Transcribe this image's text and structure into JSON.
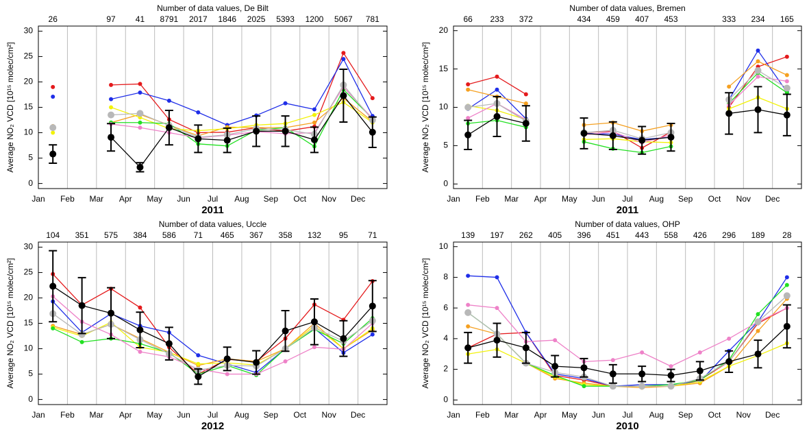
{
  "chart_data": [
    {
      "type": "line",
      "title": "Number of data values, De Bilt",
      "x_label": "2011",
      "y_label": "Average NO₂ VCD [10¹⁵ molec/cm²]",
      "x": [
        0.5,
        1.5,
        2.5,
        3.5,
        4.5,
        5.5,
        6.5,
        7.5,
        8.5,
        9.5,
        10.5,
        11.5
      ],
      "xlim": [
        0,
        12
      ],
      "xticks": [
        {
          "value": 0,
          "label": "Jan"
        },
        {
          "value": 1,
          "label": "Feb"
        },
        {
          "value": 2,
          "label": "Mar"
        },
        {
          "value": 3,
          "label": "Apr"
        },
        {
          "value": 4,
          "label": "May"
        },
        {
          "value": 5,
          "label": "Jun"
        },
        {
          "value": 6,
          "label": "Jul"
        },
        {
          "value": 7,
          "label": "Aug"
        },
        {
          "value": 8,
          "label": "Sep"
        },
        {
          "value": 9,
          "label": "Oct"
        },
        {
          "value": 10,
          "label": "Nov"
        },
        {
          "value": 11,
          "label": "Dec"
        }
      ],
      "ylim": [
        -1,
        31
      ],
      "yticks": [
        0,
        5,
        10,
        15,
        20,
        25,
        30
      ],
      "grid": true,
      "counts": [
        26,
        null,
        97,
        41,
        8791,
        2017,
        1846,
        2025,
        5393,
        1200,
        5067,
        781
      ],
      "series": [
        {
          "color": "#e41a1c",
          "values": [
            19.0,
            null,
            19.4,
            19.6,
            12.6,
            10.0,
            10.1,
            11.0,
            10.3,
            11.2,
            25.7,
            16.8
          ]
        },
        {
          "color": "#1f2ee8",
          "values": [
            17.1,
            null,
            16.6,
            17.9,
            16.3,
            14.0,
            11.5,
            13.4,
            15.8,
            14.6,
            24.5,
            13.3
          ]
        },
        {
          "color": "#f5a020",
          "values": [
            11.3,
            null,
            12.0,
            13.6,
            11.5,
            9.4,
            11.1,
            11.0,
            11.0,
            12.0,
            16.8,
            12.2
          ]
        },
        {
          "color": "#f2f20a",
          "values": [
            10.0,
            null,
            15.0,
            13.0,
            10.8,
            10.4,
            10.8,
            11.5,
            11.8,
            13.5,
            16.0,
            12.0
          ]
        },
        {
          "color": "#22e022",
          "values": [
            11.0,
            null,
            12.0,
            12.0,
            11.8,
            7.8,
            7.4,
            10.5,
            11.0,
            7.3,
            18.5,
            12.8
          ]
        },
        {
          "color": "#ee82c8",
          "values": [
            11.0,
            null,
            11.7,
            11.0,
            10.0,
            9.0,
            9.5,
            10.2,
            9.8,
            10.0,
            19.0,
            12.8
          ]
        },
        {
          "color": "#b8b8b8",
          "values": [
            11.0,
            null,
            13.5,
            13.8,
            11.4,
            9.1,
            9.6,
            10.8,
            10.6,
            9.7,
            19.4,
            12.5
          ]
        },
        {
          "color": "#000000",
          "values": [
            5.8,
            null,
            9.1,
            3.2,
            11.0,
            8.8,
            8.5,
            10.3,
            10.3,
            8.6,
            17.3,
            10.1
          ],
          "errors": [
            1.8,
            null,
            2.7,
            0.9,
            3.4,
            2.7,
            2.4,
            3.0,
            3.0,
            2.5,
            5.2,
            3.0
          ]
        }
      ]
    },
    {
      "type": "line",
      "title": "Number of data values, Bremen",
      "x_label": "2011",
      "y_label": "Average NO₂ VCD [10¹⁵ molec/cm²]",
      "x": [
        0.5,
        1.5,
        2.5,
        3.5,
        4.5,
        5.5,
        6.5,
        7.5,
        8.5,
        9.5,
        10.5,
        11.5
      ],
      "xlim": [
        0,
        12
      ],
      "xticks": [
        {
          "value": 0,
          "label": "Jan"
        },
        {
          "value": 1,
          "label": "Feb"
        },
        {
          "value": 2,
          "label": "Mar"
        },
        {
          "value": 3,
          "label": "Apr"
        },
        {
          "value": 4,
          "label": "May"
        },
        {
          "value": 5,
          "label": "Jun"
        },
        {
          "value": 6,
          "label": "Jul"
        },
        {
          "value": 7,
          "label": "Aug"
        },
        {
          "value": 8,
          "label": "Sep"
        },
        {
          "value": 9,
          "label": "Oct"
        },
        {
          "value": 10,
          "label": "Nov"
        },
        {
          "value": 11,
          "label": "Dec"
        }
      ],
      "ylim": [
        -0.6,
        20.6
      ],
      "yticks": [
        0,
        5,
        10,
        15,
        20
      ],
      "grid": true,
      "counts": [
        66,
        233,
        372,
        null,
        434,
        459,
        407,
        453,
        null,
        333,
        234,
        165
      ],
      "series": [
        {
          "color": "#e41a1c",
          "values": [
            13.0,
            14.0,
            11.7,
            null,
            6.7,
            6.9,
            4.7,
            6.8,
            null,
            10.0,
            15.3,
            16.6
          ]
        },
        {
          "color": "#1f2ee8",
          "values": [
            9.8,
            12.3,
            8.5,
            null,
            6.6,
            6.5,
            5.8,
            6.1,
            null,
            11.0,
            17.4,
            12.0
          ]
        },
        {
          "color": "#f5a020",
          "values": [
            12.3,
            11.4,
            10.5,
            null,
            7.7,
            8.0,
            6.9,
            7.7,
            null,
            12.7,
            16.0,
            14.2
          ]
        },
        {
          "color": "#f2f20a",
          "values": [
            10.2,
            9.6,
            8.4,
            null,
            5.8,
            5.9,
            5.5,
            5.4,
            null,
            9.8,
            11.3,
            9.8
          ]
        },
        {
          "color": "#22e022",
          "values": [
            7.9,
            8.3,
            7.4,
            null,
            5.5,
            4.6,
            4.1,
            4.9,
            null,
            10.5,
            14.5,
            11.9
          ]
        },
        {
          "color": "#ee82c8",
          "values": [
            8.6,
            10.5,
            8.4,
            null,
            6.4,
            6.8,
            5.4,
            6.4,
            null,
            10.3,
            14.0,
            13.4
          ]
        },
        {
          "color": "#b8b8b8",
          "values": [
            10.0,
            10.5,
            8.2,
            null,
            6.7,
            7.0,
            5.9,
            6.7,
            null,
            11.0,
            14.8,
            12.5
          ]
        },
        {
          "color": "#000000",
          "values": [
            6.4,
            8.8,
            7.9,
            null,
            6.6,
            6.3,
            5.7,
            6.1,
            null,
            9.2,
            9.7,
            9.0
          ],
          "errors": [
            1.9,
            2.6,
            2.3,
            null,
            2.0,
            1.8,
            1.8,
            1.8,
            null,
            2.7,
            3.0,
            2.7
          ]
        }
      ]
    },
    {
      "type": "line",
      "title": "Number of data values, Uccle",
      "x_label": "2012",
      "y_label": "Average NO₂ VCD [10¹⁵ molec/cm²]",
      "x": [
        0.5,
        1.5,
        2.5,
        3.5,
        4.5,
        5.5,
        6.5,
        7.5,
        8.5,
        9.5,
        10.5,
        11.5
      ],
      "xlim": [
        0,
        12
      ],
      "xticks": [
        {
          "value": 0,
          "label": "Jan"
        },
        {
          "value": 1,
          "label": "Feb"
        },
        {
          "value": 2,
          "label": "Mar"
        },
        {
          "value": 3,
          "label": "Apr"
        },
        {
          "value": 4,
          "label": "May"
        },
        {
          "value": 5,
          "label": "Jun"
        },
        {
          "value": 6,
          "label": "Jul"
        },
        {
          "value": 7,
          "label": "Aug"
        },
        {
          "value": 8,
          "label": "Sep"
        },
        {
          "value": 9,
          "label": "Oct"
        },
        {
          "value": 10,
          "label": "Nov"
        },
        {
          "value": 11,
          "label": "Dec"
        }
      ],
      "ylim": [
        -1,
        31
      ],
      "yticks": [
        0,
        5,
        10,
        15,
        20,
        25,
        30
      ],
      "grid": true,
      "counts": [
        104,
        351,
        575,
        384,
        586,
        71,
        465,
        367,
        358,
        132,
        95,
        71
      ],
      "series": [
        {
          "color": "#e41a1c",
          "values": [
            24.7,
            18.6,
            21.8,
            18.1,
            10.3,
            5.0,
            7.9,
            7.5,
            12.0,
            18.7,
            15.7,
            23.3
          ]
        },
        {
          "color": "#1f2ee8",
          "values": [
            19.3,
            13.2,
            16.9,
            14.5,
            13.2,
            8.7,
            7.0,
            5.3,
            10.0,
            14.0,
            9.2,
            12.8
          ]
        },
        {
          "color": "#f5a020",
          "values": [
            14.5,
            12.8,
            14.8,
            12.0,
            9.3,
            6.7,
            8.0,
            7.5,
            10.0,
            15.0,
            10.0,
            13.7
          ]
        },
        {
          "color": "#f2f20a",
          "values": [
            14.2,
            12.5,
            15.2,
            10.3,
            9.3,
            7.0,
            7.2,
            6.8,
            10.0,
            14.5,
            10.0,
            14.0
          ]
        },
        {
          "color": "#22e022",
          "values": [
            14.0,
            11.3,
            12.0,
            11.0,
            9.2,
            5.0,
            6.7,
            4.8,
            10.0,
            13.8,
            11.0,
            16.0
          ]
        },
        {
          "color": "#ee82c8",
          "values": [
            20.3,
            15.3,
            12.8,
            9.4,
            8.4,
            6.0,
            5.0,
            5.0,
            7.5,
            10.3,
            9.9,
            15.0
          ]
        },
        {
          "color": "#b8b8b8",
          "values": [
            16.9,
            12.8,
            14.8,
            11.8,
            9.0,
            5.8,
            6.7,
            6.6,
            10.0,
            14.1,
            11.5,
            15.5
          ]
        },
        {
          "color": "#000000",
          "values": [
            22.3,
            18.5,
            17.0,
            13.7,
            11.0,
            4.5,
            8.0,
            7.3,
            13.5,
            15.3,
            12.0,
            18.4
          ],
          "errors": [
            7.0,
            5.5,
            5.0,
            3.5,
            3.2,
            1.5,
            2.3,
            2.3,
            4.0,
            4.5,
            3.5,
            5.0
          ]
        }
      ]
    },
    {
      "type": "line",
      "title": "Number of data values, OHP",
      "x_label": "2010",
      "y_label": "Average NO₂ VCD [10¹⁵ molec/cm²]",
      "x": [
        0.5,
        1.5,
        2.5,
        3.5,
        4.5,
        5.5,
        6.5,
        7.5,
        8.5,
        9.5,
        10.5,
        11.5
      ],
      "xlim": [
        0,
        12
      ],
      "xticks": [
        {
          "value": 0,
          "label": "Jan"
        },
        {
          "value": 1,
          "label": "Feb"
        },
        {
          "value": 2,
          "label": "Mar"
        },
        {
          "value": 3,
          "label": "Apr"
        },
        {
          "value": 4,
          "label": "May"
        },
        {
          "value": 5,
          "label": "Jun"
        },
        {
          "value": 6,
          "label": "Jul"
        },
        {
          "value": 7,
          "label": "Aug"
        },
        {
          "value": 8,
          "label": "Sep"
        },
        {
          "value": 9,
          "label": "Oct"
        },
        {
          "value": 10,
          "label": "Nov"
        },
        {
          "value": 11,
          "label": "Dec"
        }
      ],
      "ylim": [
        -0.3,
        10.3
      ],
      "yticks": [
        0,
        2,
        4,
        6,
        8,
        10
      ],
      "grid": true,
      "counts": [
        139,
        197,
        262,
        405,
        396,
        451,
        443,
        558,
        426,
        296,
        189,
        28
      ],
      "series": [
        {
          "color": "#e41a1c",
          "values": [
            3.4,
            4.3,
            4.4,
            1.6,
            1.3,
            0.9,
            0.9,
            0.9,
            1.3,
            2.5,
            5.0,
            6.0
          ]
        },
        {
          "color": "#1f2ee8",
          "values": [
            8.1,
            8.0,
            4.4,
            1.7,
            1.4,
            0.9,
            1.0,
            1.0,
            1.2,
            3.2,
            5.1,
            8.0
          ]
        },
        {
          "color": "#f5a020",
          "values": [
            4.8,
            4.3,
            2.4,
            1.4,
            1.1,
            0.9,
            0.8,
            0.9,
            1.1,
            2.2,
            4.5,
            6.6
          ]
        },
        {
          "color": "#f2f20a",
          "values": [
            3.0,
            3.3,
            2.4,
            1.5,
            1.0,
            0.9,
            0.9,
            0.9,
            1.2,
            2.2,
            2.9,
            3.7
          ]
        },
        {
          "color": "#22e022",
          "values": [
            5.7,
            4.3,
            2.4,
            1.6,
            0.9,
            0.9,
            0.9,
            1.0,
            1.3,
            2.6,
            5.6,
            7.5
          ]
        },
        {
          "color": "#ee82c8",
          "values": [
            6.2,
            6.0,
            3.8,
            3.9,
            2.5,
            2.6,
            3.1,
            2.2,
            3.1,
            4.0,
            5.1,
            6.0
          ]
        },
        {
          "color": "#b8b8b8",
          "values": [
            5.7,
            4.3,
            2.4,
            1.8,
            1.5,
            0.9,
            0.9,
            0.9,
            1.4,
            2.5,
            5.1,
            6.8
          ]
        },
        {
          "color": "#000000",
          "values": [
            3.4,
            3.9,
            3.4,
            2.2,
            2.1,
            1.7,
            1.7,
            1.6,
            1.9,
            2.5,
            3.0,
            4.8
          ],
          "errors": [
            1.0,
            1.1,
            1.0,
            0.7,
            0.6,
            0.6,
            0.5,
            0.4,
            0.6,
            0.7,
            0.9,
            1.4
          ]
        }
      ]
    }
  ]
}
